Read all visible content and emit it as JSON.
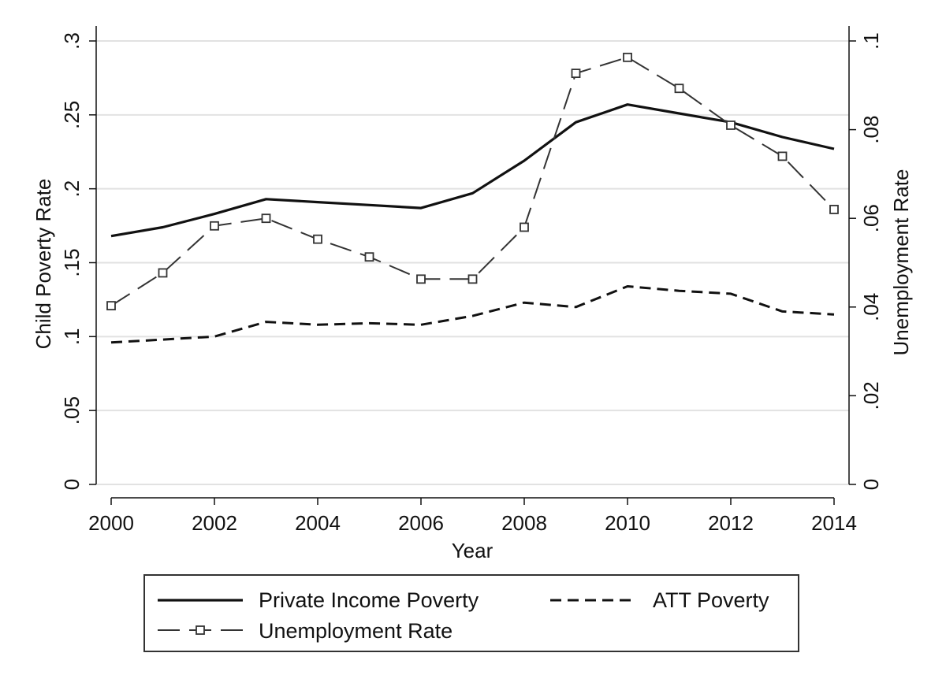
{
  "chart_data": {
    "type": "line",
    "title": "",
    "xlabel": "Year",
    "ylabel_left": "Child Poverty Rate",
    "ylabel_right": "Unemployment Rate",
    "x": [
      2000,
      2001,
      2002,
      2003,
      2004,
      2005,
      2006,
      2007,
      2008,
      2009,
      2010,
      2011,
      2012,
      2013,
      2014
    ],
    "xticks": [
      2000,
      2002,
      2004,
      2006,
      2008,
      2010,
      2012,
      2014
    ],
    "xlim": [
      2000,
      2014
    ],
    "ylim_left": [
      0,
      0.3
    ],
    "yticks_left": [
      0,
      0.05,
      0.1,
      0.15,
      0.2,
      0.25,
      0.3
    ],
    "ytick_labels_left": [
      "0",
      ".05",
      ".1",
      ".15",
      ".2",
      ".25",
      ".3"
    ],
    "ylim_right": [
      0,
      0.1
    ],
    "yticks_right": [
      0,
      0.02,
      0.04,
      0.06,
      0.08,
      0.1
    ],
    "ytick_labels_right": [
      "0",
      ".02",
      ".04",
      ".06",
      ".08",
      ".1"
    ],
    "grid": true,
    "legend_position": "bottom",
    "series": [
      {
        "name": "Private Income Poverty",
        "axis": "left",
        "style": "solid",
        "values": [
          0.168,
          0.174,
          0.183,
          0.193,
          0.191,
          0.189,
          0.187,
          0.197,
          0.219,
          0.245,
          0.257,
          0.251,
          0.245,
          0.235,
          0.227
        ]
      },
      {
        "name": "ATT Poverty",
        "axis": "left",
        "style": "dashed",
        "values": [
          0.096,
          0.098,
          0.1,
          0.11,
          0.108,
          0.109,
          0.108,
          0.114,
          0.123,
          0.12,
          0.134,
          0.131,
          0.129,
          0.117,
          0.115
        ]
      },
      {
        "name": "Unemployment Rate",
        "axis": "right",
        "style": "longdash-square",
        "values": [
          0.0403,
          0.0477,
          0.0583,
          0.06,
          0.0553,
          0.0513,
          0.0463,
          0.0463,
          0.058,
          0.0927,
          0.0963,
          0.0893,
          0.081,
          0.074,
          0.062
        ]
      }
    ]
  },
  "colors": {
    "line": "#111111",
    "grid": "#e2e2e2",
    "axis": "#111111",
    "marker_fill": "#ffffff"
  }
}
